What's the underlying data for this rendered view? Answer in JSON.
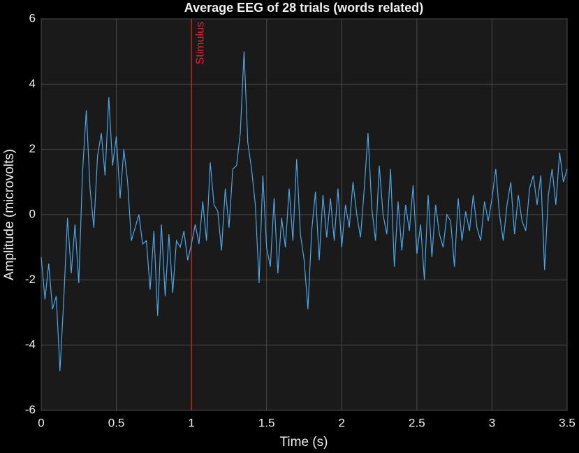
{
  "chart_data": {
    "type": "line",
    "title": "Average EEG of 28 trials (words related)",
    "x_label": "Time (s)",
    "y_label": "Amplitude (microvolts)",
    "xlim": [
      0,
      3.5
    ],
    "ylim": [
      -6,
      6
    ],
    "xticks": [
      0,
      0.5,
      1,
      1.5,
      2,
      2.5,
      3,
      3.5
    ],
    "yticks": [
      -6,
      -4,
      -2,
      0,
      2,
      4,
      6
    ],
    "grid": true,
    "x": [
      0,
      0.025,
      0.05,
      0.075,
      0.1,
      0.125,
      0.15,
      0.175,
      0.2,
      0.225,
      0.25,
      0.275,
      0.3,
      0.325,
      0.35,
      0.375,
      0.4,
      0.425,
      0.45,
      0.475,
      0.5,
      0.525,
      0.55,
      0.575,
      0.6,
      0.625,
      0.65,
      0.675,
      0.7,
      0.725,
      0.75,
      0.775,
      0.8,
      0.825,
      0.85,
      0.875,
      0.9,
      0.925,
      0.95,
      0.975,
      1,
      1.025,
      1.05,
      1.075,
      1.1,
      1.125,
      1.15,
      1.175,
      1.2,
      1.225,
      1.25,
      1.275,
      1.3,
      1.325,
      1.35,
      1.375,
      1.4,
      1.425,
      1.45,
      1.475,
      1.5,
      1.525,
      1.55,
      1.575,
      1.6,
      1.625,
      1.65,
      1.675,
      1.7,
      1.725,
      1.75,
      1.775,
      1.8,
      1.825,
      1.85,
      1.875,
      1.9,
      1.925,
      1.95,
      1.975,
      2,
      2.025,
      2.05,
      2.075,
      2.1,
      2.125,
      2.15,
      2.175,
      2.2,
      2.225,
      2.25,
      2.275,
      2.3,
      2.325,
      2.35,
      2.375,
      2.4,
      2.425,
      2.45,
      2.475,
      2.5,
      2.525,
      2.55,
      2.575,
      2.6,
      2.625,
      2.65,
      2.675,
      2.7,
      2.725,
      2.75,
      2.775,
      2.8,
      2.825,
      2.85,
      2.875,
      2.9,
      2.925,
      2.95,
      2.975,
      3,
      3.025,
      3.05,
      3.075,
      3.1,
      3.125,
      3.15,
      3.175,
      3.2,
      3.225,
      3.25,
      3.275,
      3.3,
      3.325,
      3.35,
      3.375,
      3.4,
      3.425,
      3.45,
      3.475,
      3.5
    ],
    "series": [
      {
        "name": "EEG",
        "color": "#4da6e8",
        "values": [
          -1.3,
          -2.6,
          -1.5,
          -2.9,
          -2.5,
          -4.8,
          -2.6,
          -0.1,
          -1.8,
          -0.3,
          -2.1,
          1.3,
          3.2,
          0.8,
          -0.4,
          1.8,
          2.5,
          1.2,
          3.6,
          1.5,
          2.4,
          0.5,
          2.0,
          1.0,
          -0.8,
          -0.4,
          0.0,
          -0.9,
          -0.8,
          -2.3,
          -0.5,
          -3.1,
          -0.3,
          -2.5,
          -0.6,
          -2.4,
          -0.8,
          -1.0,
          -0.5,
          -1.4,
          -0.9,
          -0.3,
          -0.9,
          0.4,
          -0.8,
          1.6,
          0.3,
          0.1,
          -1.1,
          0.8,
          -0.4,
          1.4,
          1.5,
          2.5,
          5.0,
          2.2,
          1.4,
          0.3,
          -2.1,
          1.2,
          -1.0,
          -1.6,
          0.5,
          -1.8,
          -0.1,
          -1.0,
          0.8,
          -0.8,
          1.7,
          -0.6,
          -1.4,
          -2.9,
          -0.5,
          0.7,
          -1.4,
          0.6,
          -0.7,
          0.5,
          -0.8,
          0.8,
          -1.0,
          0.3,
          -0.4,
          1.0,
          0.0,
          -0.7,
          0.8,
          2.5,
          0.2,
          -0.8,
          1.5,
          0.0,
          -0.6,
          1.4,
          -1.6,
          0.4,
          -1.1,
          0.3,
          -0.5,
          0.9,
          -1.2,
          -0.3,
          -2.0,
          0.6,
          -1.3,
          0.3,
          -0.6,
          -1.0,
          0.0,
          -0.2,
          -1.6,
          0.5,
          -0.8,
          0.1,
          -0.5,
          0.6,
          -0.4,
          -0.8,
          0.4,
          -0.2,
          0.5,
          1.4,
          0.0,
          -0.8,
          0.3,
          1.0,
          -0.6,
          0.6,
          -0.2,
          -0.5,
          0.8,
          1.2,
          0.3,
          1.2,
          -1.7,
          0.6,
          1.4,
          0.3,
          1.9,
          1.0,
          1.4
        ]
      }
    ],
    "annotations": [
      {
        "x": 1,
        "label": "Stimulus",
        "color": "#d9262b"
      }
    ]
  }
}
